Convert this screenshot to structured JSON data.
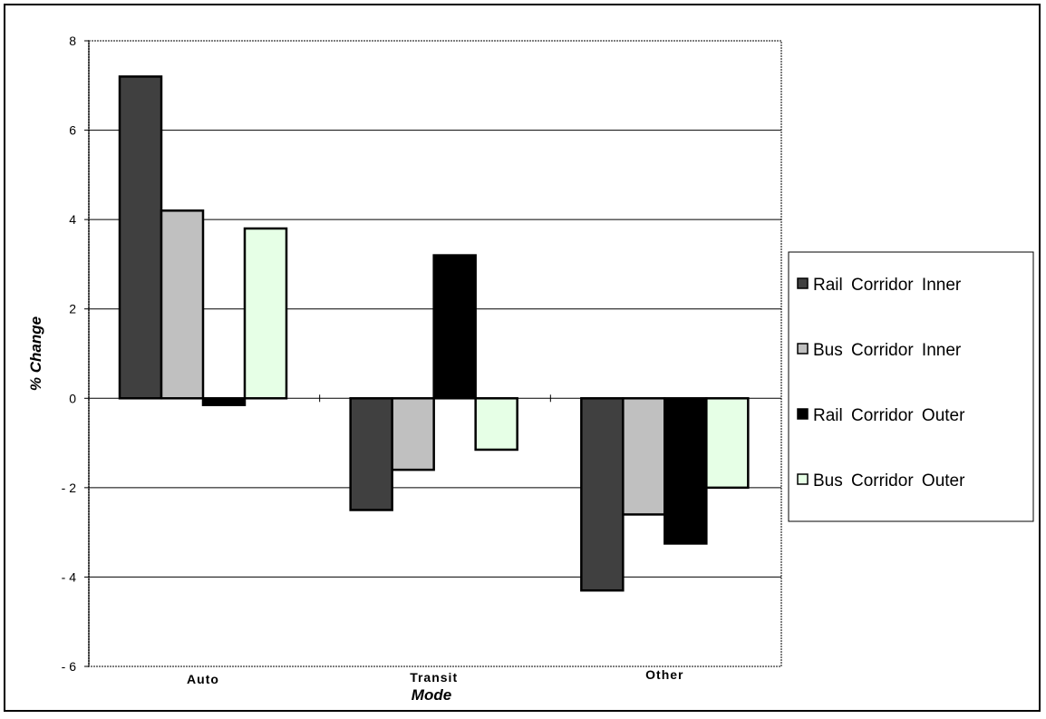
{
  "chart_data": {
    "type": "bar",
    "categories": [
      "Auto",
      "Transit",
      "Other"
    ],
    "series": [
      {
        "name": "Rail  Corridor  Inner",
        "color": "#404040",
        "values": [
          7.2,
          -2.5,
          -4.3
        ]
      },
      {
        "name": "Bus  Corridor  Inner",
        "color": "#c0c0c0",
        "values": [
          4.2,
          -1.6,
          -2.6
        ]
      },
      {
        "name": "Rail  Corridor  Outer",
        "color": "#000000",
        "values": [
          -0.15,
          3.2,
          -3.25
        ]
      },
      {
        "name": "Bus  Corridor  Outer",
        "color": "#e6ffe6",
        "values": [
          3.8,
          -1.15,
          -2.0
        ]
      }
    ],
    "xlabel": "Mode",
    "ylabel": "% Change",
    "ylim": [
      -6,
      8
    ],
    "yticks": [
      8,
      6,
      4,
      2,
      0,
      -2,
      -4,
      -6
    ],
    "ytick_labels": [
      "8",
      "6",
      "4",
      "2",
      "0",
      "- 2",
      "- 4",
      "- 6"
    ],
    "grid": true,
    "legend_position": "right"
  }
}
